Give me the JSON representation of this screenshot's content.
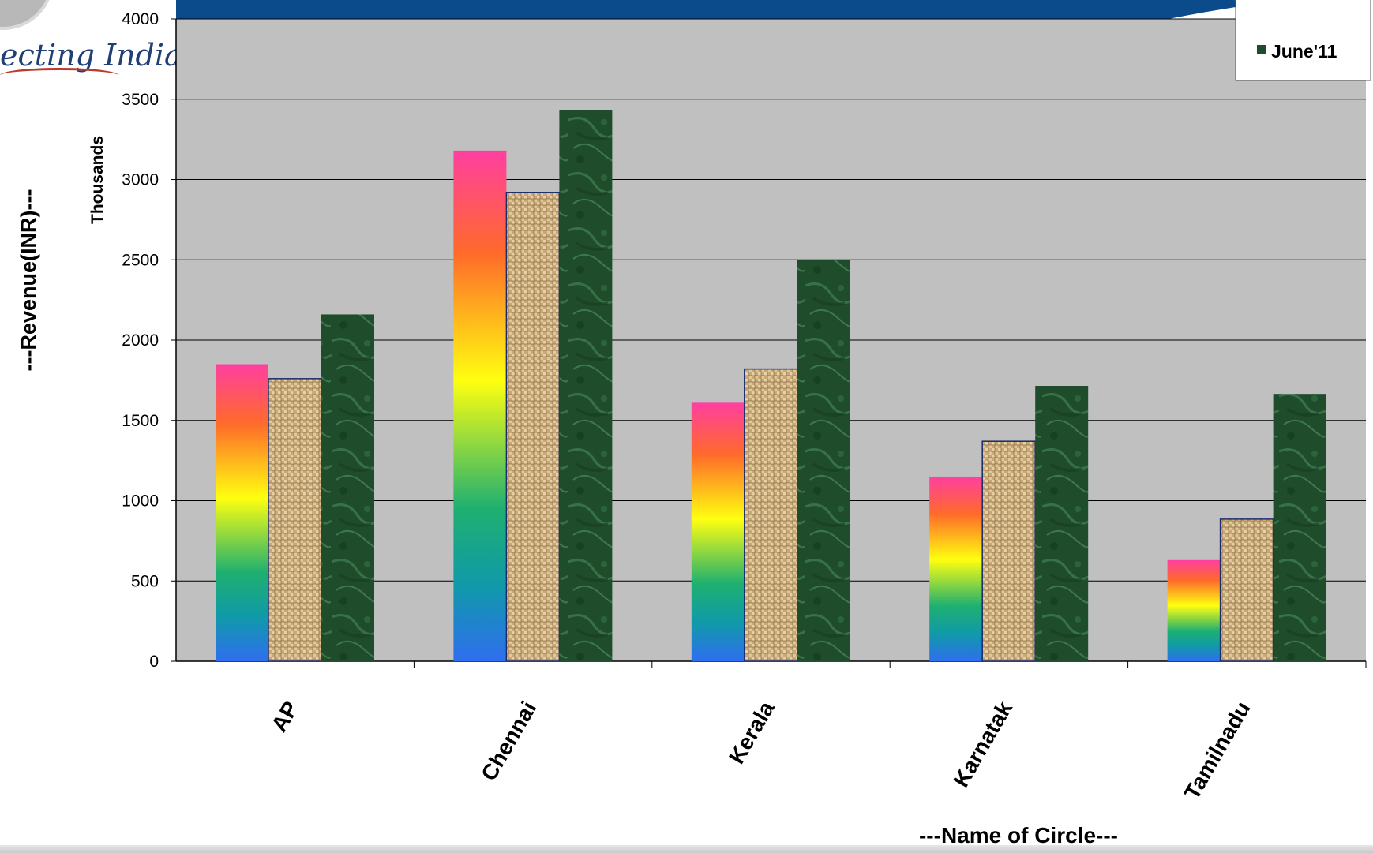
{
  "logo": {
    "text": "ecting India"
  },
  "chart_data": {
    "type": "bar",
    "categories": [
      "AP",
      "Chennai",
      "Kerala",
      "Karnatak",
      "Tamilnadu"
    ],
    "series": [
      {
        "name": "",
        "values": [
          1850,
          3180,
          1610,
          1150,
          630
        ],
        "fill": "rainbow-gradient"
      },
      {
        "name": "",
        "values": [
          1760,
          2920,
          1820,
          1370,
          885
        ],
        "fill": "burlap-texture"
      },
      {
        "name": "June'11",
        "values": [
          2160,
          3430,
          2500,
          1715,
          1665
        ],
        "fill": "green-marble-texture",
        "color": "#1f4d2b"
      }
    ],
    "y_ticks": [
      0,
      500,
      1000,
      1500,
      2000,
      2500,
      3000,
      3500,
      4000
    ],
    "ylim": [
      0,
      4000
    ],
    "y_unit_label": "Thousands",
    "ylabel": "---Revenue(INR)---",
    "xlabel": "---Name of Circle---",
    "grid": true,
    "legend": "top-right",
    "plot_background": "#c0c0c0",
    "banner_color": "#0b4a8b"
  }
}
